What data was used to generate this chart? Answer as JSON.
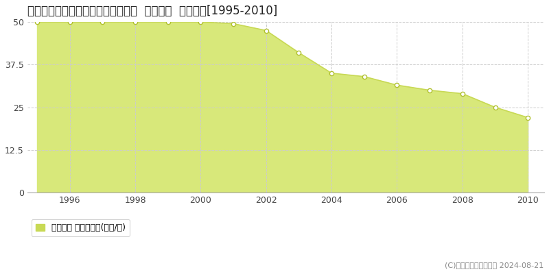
{
  "title": "秋田県秋田市寺内字イサノ２７番外  地価公示  地価推移[1995-2010]",
  "years": [
    1995,
    1996,
    1997,
    1998,
    1999,
    2000,
    2001,
    2002,
    2003,
    2004,
    2005,
    2006,
    2007,
    2008,
    2009,
    2010
  ],
  "values": [
    50.0,
    50.0,
    50.0,
    50.0,
    50.0,
    50.0,
    49.5,
    47.5,
    41.0,
    35.0,
    34.0,
    31.5,
    30.0,
    29.0,
    25.0,
    22.0
  ],
  "line_color": "#c8d955",
  "fill_color": "#d8e87a",
  "marker_face_color": "#ffffff",
  "marker_edge_color": "#b0c030",
  "grid_color_h": "#cccccc",
  "grid_color_v": "#cccccc",
  "background_color": "#ffffff",
  "plot_bg_color": "#ffffff",
  "ylim": [
    0,
    50
  ],
  "yticks": [
    0,
    12.5,
    25,
    37.5,
    50
  ],
  "xtick_positions": [
    1996,
    1998,
    2000,
    2002,
    2004,
    2006,
    2008,
    2010
  ],
  "xlim_left": 1994.7,
  "xlim_right": 2010.5,
  "legend_label": "地価公示 平均坪単価(万円/坪)",
  "copyright_text": "(C)土地価格ドットコム 2024-08-21",
  "title_fontsize": 12,
  "legend_fontsize": 9,
  "tick_fontsize": 9,
  "copyright_fontsize": 8
}
